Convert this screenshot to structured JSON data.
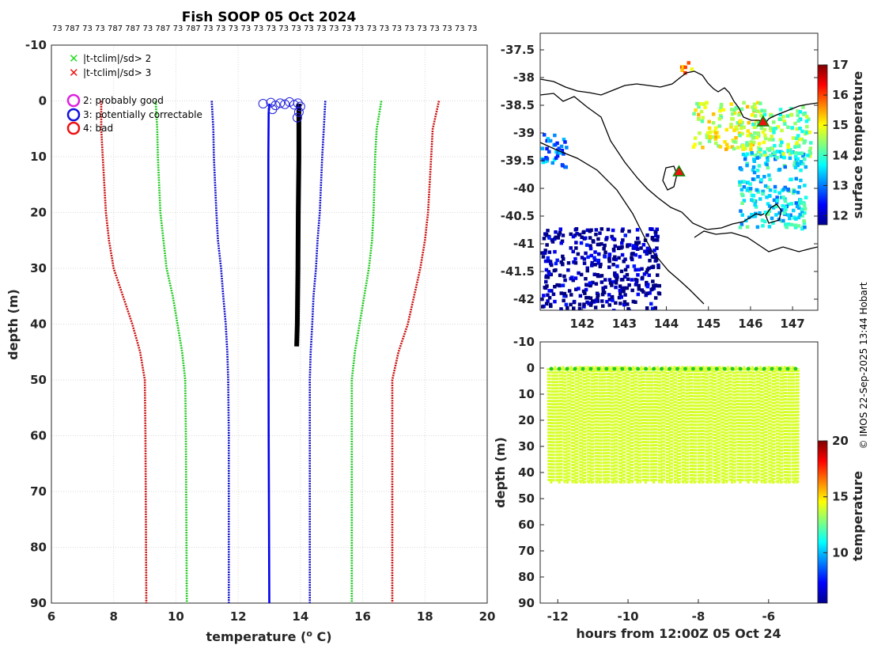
{
  "title": "Fish SOOP 05 Oct 2024",
  "header_counts": "73 787 73 73 787 787 73 787 73 787 73 73 73 73 73 73 73 73 73 73 73 73 73 73 73 73 73 73 73 73 73 73",
  "credit": "© IMOS 22-Sep-2025 13:44 Hobart",
  "legend": {
    "items": [
      {
        "label": "|t-tclim|/sd> 2",
        "marker": "x",
        "color": "#22dd22"
      },
      {
        "label": "|t-tclim|/sd> 3",
        "marker": "x",
        "color": "#ee1111"
      },
      {
        "label": "2: probably good",
        "marker": "o",
        "color": "#dd22dd"
      },
      {
        "label": "3: potentially correctable",
        "marker": "o",
        "color": "#1111dd"
      },
      {
        "label": "4: bad",
        "marker": "o",
        "color": "#ee1111"
      }
    ]
  },
  "colors": {
    "clim3": "#cc1111",
    "clim2": "#22cc22",
    "clim_sd1": "#1111cc",
    "profile": "#000000",
    "flag3": "#2222dd"
  },
  "chart_data": [
    {
      "type": "line",
      "title": "Fish SOOP 05 Oct 2024",
      "xlabel": "temperature (",
      "xlabel_sup": "o",
      "xlabel_tail": " C)",
      "ylabel": "depth (m)",
      "xlim": [
        6,
        20
      ],
      "ylim": [
        90,
        -10
      ],
      "xticks": [
        6,
        8,
        10,
        12,
        14,
        16,
        18,
        20
      ],
      "yticks": [
        -10,
        0,
        10,
        20,
        30,
        40,
        50,
        60,
        70,
        80,
        90
      ],
      "grid": true,
      "series": [
        {
          "name": "clim-3sd",
          "color": "#cc1111",
          "depth": [
            0,
            5,
            10,
            20,
            25,
            30,
            35,
            40,
            45,
            50,
            60,
            90
          ],
          "temp": [
            7.6,
            7.6,
            7.65,
            7.75,
            7.85,
            8.0,
            8.3,
            8.6,
            8.85,
            9.0,
            9.02,
            9.05
          ]
        },
        {
          "name": "clim-2sd",
          "color": "#22cc22",
          "depth": [
            0,
            5,
            10,
            20,
            25,
            30,
            35,
            40,
            45,
            50,
            60,
            90
          ],
          "temp": [
            9.35,
            9.4,
            9.42,
            9.5,
            9.6,
            9.7,
            9.9,
            10.05,
            10.2,
            10.3,
            10.32,
            10.35
          ]
        },
        {
          "name": "clim-1sd",
          "color": "#1111cc",
          "depth": [
            0,
            5,
            10,
            20,
            25,
            30,
            35,
            40,
            45,
            50,
            60,
            90
          ],
          "temp": [
            11.15,
            11.2,
            11.22,
            11.3,
            11.35,
            11.45,
            11.52,
            11.6,
            11.65,
            11.68,
            11.7,
            11.7
          ]
        },
        {
          "name": "clim+1sd",
          "color": "#1111cc",
          "depth": [
            0,
            5,
            10,
            20,
            25,
            30,
            35,
            40,
            45,
            50,
            60,
            90
          ],
          "temp": [
            14.8,
            14.75,
            14.7,
            14.62,
            14.55,
            14.5,
            14.42,
            14.38,
            14.33,
            14.3,
            14.3,
            14.3
          ]
        },
        {
          "name": "clim+2sd",
          "color": "#22cc22",
          "depth": [
            0,
            5,
            10,
            20,
            25,
            30,
            35,
            40,
            45,
            50,
            60,
            90
          ],
          "temp": [
            16.6,
            16.45,
            16.4,
            16.35,
            16.3,
            16.2,
            16.05,
            15.9,
            15.75,
            15.65,
            15.65,
            15.65
          ]
        },
        {
          "name": "clim+3sd",
          "color": "#cc1111",
          "depth": [
            0,
            5,
            10,
            20,
            25,
            30,
            35,
            40,
            45,
            50,
            60,
            90
          ],
          "temp": [
            18.45,
            18.25,
            18.2,
            18.1,
            18.0,
            17.85,
            17.65,
            17.45,
            17.15,
            16.95,
            16.95,
            16.95
          ]
        },
        {
          "name": "profile-flagged",
          "color": "#0000ee",
          "depth": [
            0.5,
            1,
            2,
            10,
            30,
            60,
            90
          ],
          "temp": [
            13.0,
            13.0,
            12.98,
            12.97,
            12.97,
            12.98,
            13.0
          ]
        },
        {
          "name": "profile",
          "color": "#000000",
          "depth": [
            0.5,
            2,
            5,
            10,
            20,
            30,
            40,
            44
          ],
          "temp": [
            13.95,
            13.95,
            13.95,
            13.95,
            13.93,
            13.92,
            13.9,
            13.88
          ]
        }
      ],
      "flag3_points": {
        "temp": [
          12.8,
          13.05,
          13.2,
          13.35,
          13.5,
          13.65,
          13.8,
          13.92,
          14.0,
          13.95,
          13.9,
          13.1
        ],
        "depth": [
          0.5,
          0.3,
          0.8,
          0.4,
          0.6,
          0.2,
          0.7,
          0.4,
          1.0,
          2.0,
          3.0,
          1.5
        ]
      }
    },
    {
      "type": "heatmap",
      "title": "",
      "xlim": [
        141,
        147.6
      ],
      "ylim": [
        -42.2,
        -37.2
      ],
      "xticks": [
        142,
        143,
        144,
        145,
        146,
        147
      ],
      "yticks": [
        -37.5,
        -38,
        -38.5,
        -39,
        -39.5,
        -40,
        -40.5,
        -41,
        -41.5,
        -42
      ],
      "colorbar": {
        "label": "surface temperature",
        "range": [
          11.7,
          17
        ],
        "ticks": [
          12,
          13,
          14,
          15,
          16,
          17
        ]
      },
      "markers": [
        {
          "lon": 144.3,
          "lat": -39.7,
          "shape": "triangle",
          "color": "#ee1111"
        },
        {
          "lon": 146.3,
          "lat": -38.8,
          "shape": "triangle",
          "color": "#ee1111"
        }
      ],
      "sst_clusters": [
        {
          "lon": [
            144.6,
            146.2
          ],
          "lat": [
            -39.3,
            -38.4
          ],
          "value": 14.8
        },
        {
          "lon": [
            145.7,
            147.3
          ],
          "lat": [
            -40.7,
            -39.3
          ],
          "value": 13.6
        },
        {
          "lon": [
            146.0,
            147.4
          ],
          "lat": [
            -39.4,
            -38.5
          ],
          "value": 14.3
        },
        {
          "lon": [
            141.0,
            141.6
          ],
          "lat": [
            -39.6,
            -39.0
          ],
          "value": 13.0
        },
        {
          "lon": [
            141.0,
            143.8
          ],
          "lat": [
            -42.2,
            -40.7
          ],
          "value": 11.8
        },
        {
          "lon": [
            144.3,
            144.6
          ],
          "lat": [
            -37.9,
            -37.7
          ],
          "value": 15.5
        }
      ]
    },
    {
      "type": "scatter",
      "title": "",
      "xlabel": "hours from 12:00Z 05 Oct 24",
      "ylabel": "depth (m)",
      "xlim": [
        -12.5,
        -4.6
      ],
      "ylim": [
        90,
        -10
      ],
      "xticks": [
        -12,
        -10,
        -8,
        -6
      ],
      "yticks": [
        -10,
        0,
        10,
        20,
        30,
        40,
        50,
        60,
        70,
        80,
        90
      ],
      "colorbar": {
        "label": "temperature",
        "range": [
          5.5,
          20
        ],
        "ticks": [
          10,
          15,
          20
        ]
      },
      "casts": {
        "count": 32,
        "t_start": -12.25,
        "t_end": -5.3,
        "depth_top": 0,
        "depth_bottom": 43.5,
        "temperature": 14
      }
    }
  ]
}
